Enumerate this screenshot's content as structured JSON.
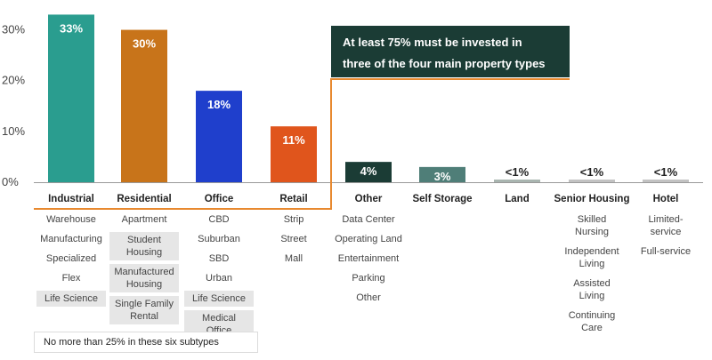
{
  "chart_data": {
    "type": "bar",
    "ylim": [
      0,
      35
    ],
    "yticks": [
      "0%",
      "10%",
      "20%",
      "30%"
    ],
    "categories": [
      "Industrial",
      "Residential",
      "Office",
      "Retail",
      "Other",
      "Self Storage",
      "Land",
      "Senior Housing",
      "Hotel"
    ],
    "values": [
      33,
      30,
      18,
      11,
      4,
      3,
      0.5,
      0.3,
      0.3
    ],
    "value_labels": [
      "33%",
      "30%",
      "18%",
      "11%",
      "4%",
      "3%",
      "<1%",
      "<1%",
      "<1%"
    ],
    "colors": [
      "#2a9d8f",
      "#c8741a",
      "#1f3fcc",
      "#e0551c",
      "#1b3c35",
      "#4f7e78",
      "#a9b5b0",
      "#c2c2c2",
      "#c2c2c2"
    ],
    "subtypes": [
      [
        {
          "text": "Warehouse",
          "shaded": false
        },
        {
          "text": "Manufacturing",
          "shaded": false
        },
        {
          "text": "Specialized",
          "shaded": false
        },
        {
          "text": "Flex",
          "shaded": false
        },
        {
          "text": "Life Science",
          "shaded": true
        }
      ],
      [
        {
          "text": "Apartment",
          "shaded": false
        },
        {
          "text": "Student Housing",
          "shaded": true
        },
        {
          "text": "Manufactured Housing",
          "shaded": true
        },
        {
          "text": "Single Family Rental",
          "shaded": true
        }
      ],
      [
        {
          "text": "CBD",
          "shaded": false
        },
        {
          "text": "Suburban",
          "shaded": false
        },
        {
          "text": "SBD",
          "shaded": false
        },
        {
          "text": "Urban",
          "shaded": false
        },
        {
          "text": "Life Science",
          "shaded": true
        },
        {
          "text": "Medical Office",
          "shaded": true
        }
      ],
      [
        {
          "text": "Strip",
          "shaded": false
        },
        {
          "text": "Street",
          "shaded": false
        },
        {
          "text": "Mall",
          "shaded": false
        }
      ],
      [
        {
          "text": "Data Center",
          "shaded": false
        },
        {
          "text": "Operating Land",
          "shaded": false
        },
        {
          "text": "Entertainment",
          "shaded": false
        },
        {
          "text": "Parking",
          "shaded": false
        },
        {
          "text": "Other",
          "shaded": false
        }
      ],
      [],
      [],
      [
        {
          "text": "Skilled Nursing",
          "shaded": false
        },
        {
          "text": "Independent Living",
          "shaded": false
        },
        {
          "text": "Assisted Living",
          "shaded": false
        },
        {
          "text": "Continuing Care",
          "shaded": false
        }
      ],
      [
        {
          "text": "Limited-service",
          "shaded": false
        },
        {
          "text": "Full-service",
          "shaded": false
        }
      ]
    ],
    "annotation": "At least 75% must be invested in three of the four main property types",
    "note": "No more than 25% in these six subtypes",
    "grid": false,
    "annotation_color": "#1b3c35",
    "bracket_color": "#e8892f",
    "shade_color": "#e6e6e6"
  }
}
